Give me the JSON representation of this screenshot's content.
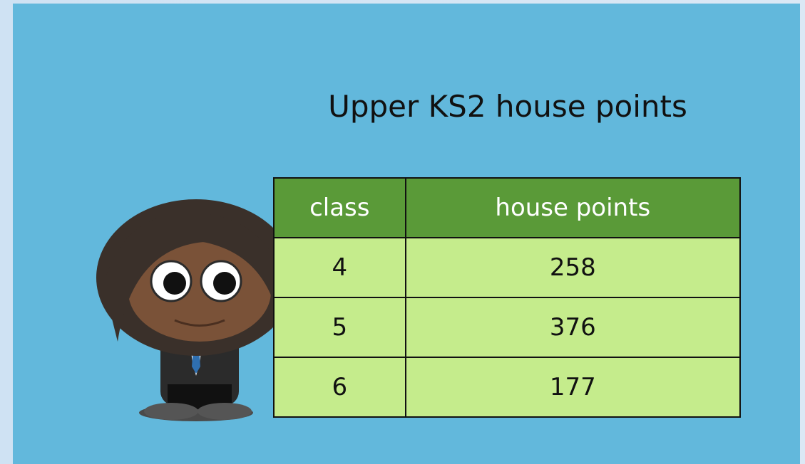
{
  "slide": {
    "title": "Upper KS2 house points",
    "table": {
      "header": [
        "class",
        "house points"
      ],
      "rows": [
        [
          4,
          258
        ],
        [
          5,
          376
        ],
        [
          6,
          177
        ]
      ]
    }
  }
}
